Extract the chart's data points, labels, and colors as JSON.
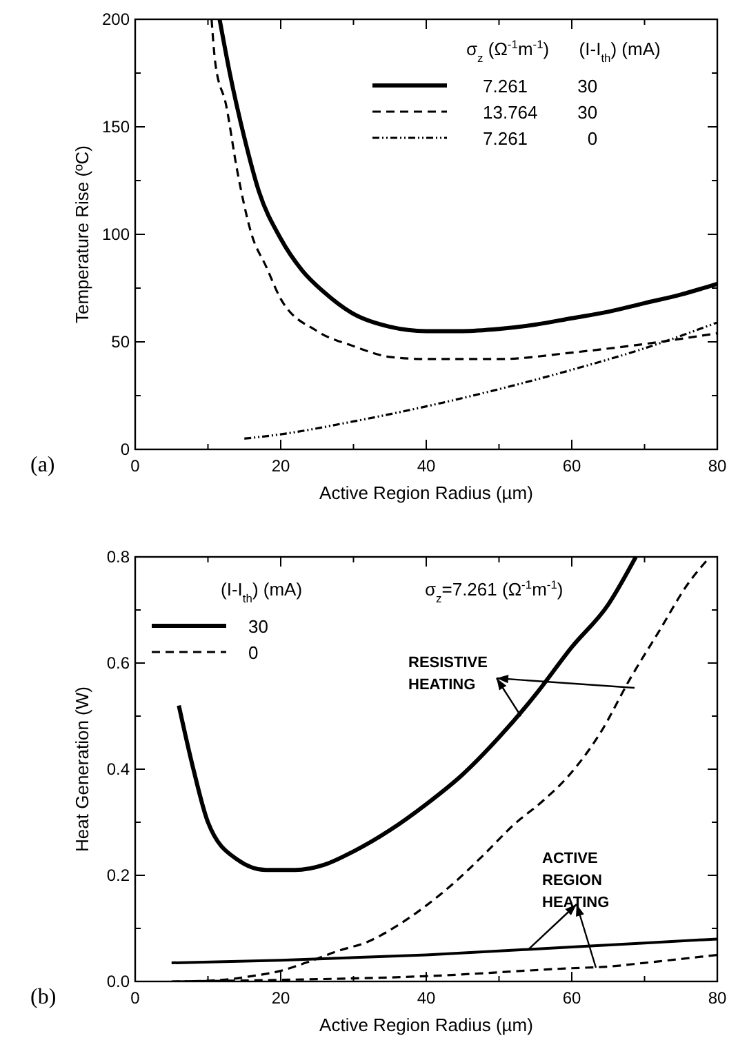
{
  "chart_data": [
    {
      "type": "line",
      "title": "(a)",
      "xlabel": "Active Region Radius (µm)",
      "ylabel": "Temperature Rise (ºC)",
      "legend_title": "σ$_{z}$ (Ω$^{-1}$m$^{-1}$)      (I-I$_{th}$) (mA)",
      "legend": "top right",
      "xlim": [
        0,
        80
      ],
      "ylim": [
        0,
        200
      ],
      "xticks": [
        0,
        {
          "value": 10,
          "label": null
        },
        20,
        {
          "value": 30,
          "label": null
        },
        40,
        {
          "value": 50,
          "label": null
        },
        60,
        {
          "value": 70,
          "label": null
        },
        80
      ],
      "yticks": [
        0,
        {
          "value": 25,
          "label": null
        },
        50,
        {
          "value": 75,
          "label": null
        },
        100,
        {
          "value": 125,
          "label": null
        },
        150,
        {
          "value": 175,
          "label": null
        },
        200
      ],
      "series": [
        {
          "name": "7.261          30",
          "color": "#000000",
          "line_style": "solid",
          "x": [
            11.6,
            13,
            15,
            17,
            20,
            23,
            26,
            30,
            35,
            40,
            45,
            50,
            55,
            60,
            65,
            70,
            75,
            80
          ],
          "values": [
            200,
            175,
            145,
            120,
            98,
            83,
            73,
            63,
            57,
            55,
            55,
            56,
            58,
            61,
            64,
            68,
            72,
            77
          ]
        },
        {
          "name": "13.764        30",
          "color": "#000000",
          "line_style": "dashed",
          "x": [
            10.5,
            11,
            12.5,
            14,
            16,
            18,
            20,
            25,
            30,
            35,
            40,
            50,
            60,
            70,
            80
          ],
          "values": [
            200,
            180,
            160,
            130,
            100,
            85,
            70,
            55,
            48,
            43,
            42,
            42,
            45,
            49,
            54
          ]
        },
        {
          "name": "7.261            0",
          "color": "#000000",
          "line_style": "dotted",
          "x": [
            15,
            20,
            30,
            40,
            50,
            60,
            70,
            80
          ],
          "values": [
            5,
            7,
            13,
            20,
            28,
            37,
            47,
            59
          ]
        }
      ]
    },
    {
      "type": "line",
      "title": "(b)",
      "xlabel": "Active Region Radius (µm)",
      "ylabel": "Heat Generation (W)",
      "legend_title": "(I-I$_{th}$) (mA)",
      "legend": "top left",
      "xlim": [
        0,
        80
      ],
      "ylim": [
        0,
        0.8
      ],
      "xticks": [
        0,
        {
          "value": 10,
          "label": null
        },
        20,
        {
          "value": 30,
          "label": null
        },
        40,
        {
          "value": 50,
          "label": null
        },
        60,
        {
          "value": 70,
          "label": null
        },
        80
      ],
      "yticks": [
        {
          "value": 0,
          "label": "0.0"
        },
        {
          "value": 0.1,
          "label": null
        },
        0.2,
        {
          "value": 0.3,
          "label": null
        },
        0.4,
        {
          "value": 0.5,
          "label": null
        },
        0.6,
        {
          "value": 0.7,
          "label": null
        },
        0.8
      ],
      "annotations": [
        "σ$_{z}$=7.261 (Ω$^{-1}$m$^{-1}$)",
        {
          "text": "RESISTIVE\nHEATING",
          "x": 53,
          "y": 0.5
        },
        {
          "text": "ACTIVE\nREGION\nHEATING",
          "x": 54,
          "y": 0.06
        }
      ],
      "series": [
        {
          "name": "30",
          "color": "#000000",
          "line_style": "solid",
          "x": [
            6,
            8,
            10,
            14,
            18,
            22,
            26,
            30,
            35,
            40,
            45,
            50,
            55,
            60,
            65,
            68.8
          ],
          "values": [
            0.52,
            0.4,
            0.3,
            0.23,
            0.21,
            0.21,
            0.22,
            0.245,
            0.285,
            0.334,
            0.39,
            0.46,
            0.54,
            0.63,
            0.71,
            0.8
          ]
        },
        {
          "name": "0",
          "color": "#000000",
          "line_style": "dashed",
          "x": [
            6,
            12,
            16,
            20,
            24,
            28,
            32,
            36,
            40,
            44,
            48,
            52,
            56,
            59.4,
            64,
            68,
            72,
            76,
            79
          ],
          "values": [
            0,
            0.003,
            0.01,
            0.02,
            0.038,
            0.058,
            0.075,
            0.105,
            0.143,
            0.188,
            0.24,
            0.295,
            0.34,
            0.385,
            0.47,
            0.57,
            0.66,
            0.75,
            0.8
          ]
        },
        {
          "color": "#000000",
          "line_style": "solid",
          "x": [
            5,
            20,
            40,
            60,
            80
          ],
          "values": [
            0.035,
            0.04,
            0.05,
            0.065,
            0.08
          ]
        },
        {
          "color": "#000000",
          "line_style": "dashed",
          "x": [
            5,
            20,
            40,
            60,
            65,
            70,
            80
          ],
          "values": [
            0,
            0.003,
            0.01,
            0.025,
            0.028,
            0.035,
            0.05
          ]
        }
      ]
    }
  ]
}
